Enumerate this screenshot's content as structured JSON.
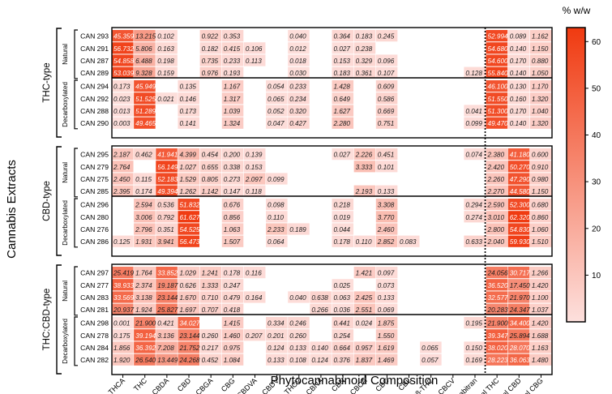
{
  "chart_data": {
    "type": "heatmap",
    "xlabel": "Phytocannabinoid Composition",
    "ylabel": "Cannabis Extracts",
    "colorbar": {
      "unit": "% w/w",
      "ticks": [
        10,
        20,
        30,
        40,
        50,
        60
      ],
      "range": [
        0,
        63
      ],
      "color_low": "#fde0dd",
      "color_high": "#f03a10"
    },
    "columns": [
      "THCA",
      "THC",
      "CBDA",
      "CBD",
      "CBGA",
      "CBG",
      "CBDVA",
      "CBDV",
      "THCV",
      "CBNA",
      "CBN",
      "CBCA",
      "CBC",
      "CBL",
      "D8-THC",
      "CBCV",
      "Cannabitran",
      "Total THC",
      "Total CBD",
      "Total CBG"
    ],
    "groups": [
      {
        "type": "THC-type",
        "subgroups": [
          {
            "name": "Natural",
            "rows": [
              {
                "label": "CAN 293",
                "values": [
                  "45.359",
                  "13.215",
                  "0.102",
                  "",
                  "0.922",
                  "0.353",
                  "",
                  "",
                  "0.040",
                  "",
                  "0.364",
                  "0.183",
                  "0.245",
                  "",
                  "",
                  "",
                  "",
                  "52.994",
                  "0.089",
                  "1.162"
                ]
              },
              {
                "label": "CAN 291",
                "values": [
                  "56.732",
                  "5.806",
                  "0.163",
                  "",
                  "0.182",
                  "0.415",
                  "0.106",
                  "",
                  "0.012",
                  "",
                  "0.027",
                  "0.238",
                  "",
                  "",
                  "",
                  "",
                  "",
                  "54.680",
                  "0.140",
                  "1.150"
                ]
              },
              {
                "label": "CAN 287",
                "values": [
                  "54.858",
                  "6.488",
                  "0.198",
                  "",
                  "0.735",
                  "0.233",
                  "0.113",
                  "",
                  "0.018",
                  "",
                  "0.153",
                  "0.329",
                  "0.096",
                  "",
                  "",
                  "",
                  "",
                  "54.600",
                  "0.170",
                  "0.880"
                ]
              },
              {
                "label": "CAN 289",
                "values": [
                  "53.039",
                  "9.328",
                  "0.159",
                  "",
                  "0.976",
                  "0.193",
                  "",
                  "",
                  "0.030",
                  "",
                  "0.183",
                  "0.361",
                  "0.107",
                  "",
                  "",
                  "",
                  "0.128",
                  "55.840",
                  "0.140",
                  "1.050"
                ]
              }
            ]
          },
          {
            "name": "Decarboxylated",
            "rows": [
              {
                "label": "CAN 294",
                "values": [
                  "0.173",
                  "45.949",
                  "",
                  "0.135",
                  "",
                  "1.167",
                  "",
                  "0.054",
                  "0.233",
                  "",
                  "1.428",
                  "",
                  "0.609",
                  "",
                  "",
                  "",
                  "",
                  "46.100",
                  "0.130",
                  "1.170"
                ]
              },
              {
                "label": "CAN 292",
                "values": [
                  "0.023",
                  "51.525",
                  "0.021",
                  "0.146",
                  "",
                  "1.317",
                  "",
                  "0.065",
                  "0.234",
                  "",
                  "0.649",
                  "",
                  "0.586",
                  "",
                  "",
                  "",
                  "",
                  "51.550",
                  "0.160",
                  "1.320"
                ]
              },
              {
                "label": "CAN 288",
                "values": [
                  "0.013",
                  "51.289",
                  "",
                  "0.173",
                  "",
                  "1.039",
                  "",
                  "0.052",
                  "0.320",
                  "",
                  "1.627",
                  "",
                  "0.669",
                  "",
                  "",
                  "",
                  "0.041",
                  "51.300",
                  "0.170",
                  "1.040"
                ]
              },
              {
                "label": "CAN 290",
                "values": [
                  "0.003",
                  "49.465",
                  "",
                  "0.141",
                  "",
                  "1.324",
                  "",
                  "0.047",
                  "0.427",
                  "",
                  "2.280",
                  "",
                  "0.751",
                  "",
                  "",
                  "",
                  "0.099",
                  "49.470",
                  "0.140",
                  "1.320"
                ]
              }
            ]
          }
        ]
      },
      {
        "type": "CBD-type",
        "subgroups": [
          {
            "name": "Natural",
            "rows": [
              {
                "label": "CAN 295",
                "values": [
                  "2.187",
                  "0.462",
                  "41.941",
                  "4.399",
                  "0.454",
                  "0.200",
                  "0.139",
                  "",
                  "",
                  "",
                  "0.027",
                  "2.226",
                  "0.451",
                  "",
                  "",
                  "",
                  "0.074",
                  "2.380",
                  "41.180",
                  "0.600"
                ]
              },
              {
                "label": "CAN 279",
                "values": [
                  "2.764",
                  "",
                  "56.149",
                  "1.027",
                  "0.655",
                  "0.338",
                  "0.153",
                  "",
                  "",
                  "",
                  "",
                  "3.333",
                  "0.101",
                  "",
                  "",
                  "",
                  "",
                  "2.420",
                  "50.270",
                  "0.910"
                ]
              },
              {
                "label": "CAN 275",
                "values": [
                  "2.450",
                  "0.115",
                  "52.183",
                  "1.529",
                  "0.805",
                  "0.273",
                  "2.097",
                  "0.099",
                  "",
                  "",
                  "",
                  "",
                  "",
                  "",
                  "",
                  "",
                  "",
                  "2.260",
                  "47.290",
                  "0.980"
                ]
              },
              {
                "label": "CAN 285",
                "values": [
                  "2.395",
                  "0.174",
                  "49.394",
                  "1.262",
                  "1.142",
                  "0.147",
                  "0.118",
                  "",
                  "",
                  "",
                  "",
                  "2.193",
                  "0.133",
                  "",
                  "",
                  "",
                  "",
                  "2.270",
                  "44.580",
                  "1.150"
                ]
              }
            ]
          },
          {
            "name": "Decarboxylated",
            "rows": [
              {
                "label": "CAN 296",
                "values": [
                  "",
                  "2.594",
                  "0.536",
                  "51.832",
                  "",
                  "0.676",
                  "",
                  "0.098",
                  "",
                  "",
                  "0.218",
                  "",
                  "3.308",
                  "",
                  "",
                  "",
                  "0.294",
                  "2.590",
                  "52.300",
                  "0.680"
                ]
              },
              {
                "label": "CAN 280",
                "values": [
                  "",
                  "3.006",
                  "0.792",
                  "61.627",
                  "",
                  "0.856",
                  "",
                  "0.110",
                  "",
                  "",
                  "0.019",
                  "",
                  "3.770",
                  "",
                  "",
                  "",
                  "0.274",
                  "3.010",
                  "62.320",
                  "0.860"
                ]
              },
              {
                "label": "CAN 276",
                "values": [
                  "",
                  "2.796",
                  "0.351",
                  "54.525",
                  "",
                  "1.063",
                  "",
                  "2.233",
                  "0.189",
                  "",
                  "0.044",
                  "",
                  "2.460",
                  "",
                  "",
                  "",
                  "",
                  "2.800",
                  "54.830",
                  "1.060"
                ]
              },
              {
                "label": "CAN 286",
                "values": [
                  "0.125",
                  "1.931",
                  "3.941",
                  "56.473",
                  "",
                  "1.507",
                  "",
                  "0.064",
                  "",
                  "",
                  "0.178",
                  "0.110",
                  "2.852",
                  "0.083",
                  "",
                  "",
                  "0.633",
                  "2.040",
                  "59.930",
                  "1.510"
                ]
              }
            ]
          }
        ]
      },
      {
        "type": "THC:CBD-type",
        "subgroups": [
          {
            "name": "Natural",
            "rows": [
              {
                "label": "CAN 297",
                "values": [
                  "25.419",
                  "1.764",
                  "33.852",
                  "1.029",
                  "1.241",
                  "0.178",
                  "0.116",
                  "",
                  "",
                  "",
                  "",
                  "1.421",
                  "0.097",
                  "",
                  "",
                  "",
                  "",
                  "24.056",
                  "30.717",
                  "1.266"
                ]
              },
              {
                "label": "CAN 277",
                "values": [
                  "38.933",
                  "2.374",
                  "19.187",
                  "0.626",
                  "1.333",
                  "0.247",
                  "",
                  "",
                  "",
                  "",
                  "0.025",
                  "",
                  "0.073",
                  "",
                  "",
                  "",
                  "",
                  "36.520",
                  "17.450",
                  "1.420"
                ]
              },
              {
                "label": "CAN 283",
                "values": [
                  "33.569",
                  "3.138",
                  "23.144",
                  "1.670",
                  "0.710",
                  "0.479",
                  "0.164",
                  "",
                  "0.040",
                  "0.638",
                  "0.063",
                  "2.425",
                  "0.133",
                  "",
                  "",
                  "",
                  "",
                  "32.577",
                  "21.970",
                  "1.100"
                ]
              },
              {
                "label": "CAN 281",
                "values": [
                  "20.937",
                  "1.924",
                  "25.827",
                  "1.697",
                  "0.707",
                  "0.418",
                  "",
                  "",
                  "",
                  "0.266",
                  "0.036",
                  "2.551",
                  "0.069",
                  "",
                  "",
                  "",
                  "",
                  "20.283",
                  "24.347",
                  "1.037"
                ]
              }
            ]
          },
          {
            "name": "Decarboxylated",
            "rows": [
              {
                "label": "CAN 298",
                "values": [
                  "0.001",
                  "21.900",
                  "0.421",
                  "34.027",
                  "",
                  "1.415",
                  "",
                  "0.334",
                  "0.246",
                  "",
                  "0.441",
                  "0.024",
                  "1.875",
                  "",
                  "",
                  "",
                  "0.195",
                  "21.900",
                  "34.400",
                  "1.420"
                ]
              },
              {
                "label": "CAN 278",
                "values": [
                  "0.175",
                  "39.194",
                  "3.136",
                  "23.144",
                  "0.260",
                  "1.460",
                  "0.207",
                  "0.201",
                  "0.260",
                  "",
                  "0.254",
                  "",
                  "1.550",
                  "",
                  "",
                  "",
                  "",
                  "39.347",
                  "25.894",
                  "1.688"
                ]
              },
              {
                "label": "CAN 284",
                "values": [
                  "1.856",
                  "36.392",
                  "7.208",
                  "21.752",
                  "0.217",
                  "0.975",
                  "",
                  "0.124",
                  "0.133",
                  "0.140",
                  "0.664",
                  "0.957",
                  "1.619",
                  "",
                  "0.065",
                  "",
                  "0.150",
                  "38.020",
                  "28.070",
                  "1.163"
                ]
              },
              {
                "label": "CAN 282",
                "values": [
                  "1.920",
                  "26.540",
                  "13.449",
                  "24.268",
                  "0.452",
                  "1.084",
                  "",
                  "0.133",
                  "0.108",
                  "0.124",
                  "0.376",
                  "1.837",
                  "1.469",
                  "",
                  "0.057",
                  "",
                  "0.169",
                  "28.223",
                  "36.063",
                  "1.480"
                ]
              }
            ]
          }
        ]
      }
    ]
  }
}
